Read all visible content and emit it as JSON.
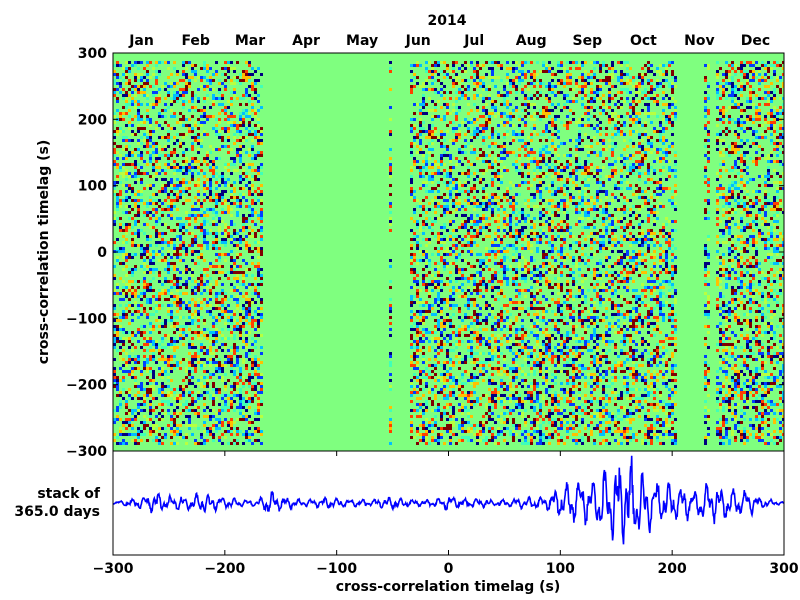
{
  "chart_data": [
    {
      "type": "heatmap",
      "title": "2014",
      "xlabel": "",
      "ylabel": "cross-correlation timelag (s)",
      "month_labels": [
        "Jan",
        "Feb",
        "Mar",
        "Apr",
        "May",
        "Jun",
        "Jul",
        "Aug",
        "Sep",
        "Oct",
        "Nov",
        "Dec"
      ],
      "ylim": [
        -300,
        300
      ],
      "yticks": [
        300,
        200,
        100,
        0,
        -100,
        -200,
        -300
      ],
      "ytick_labels": [
        "300",
        "200",
        "100",
        "0",
        "−100",
        "−200",
        "−300"
      ],
      "x_range_days": [
        1,
        366
      ],
      "data_gaps": [
        {
          "start": "2014-03-24",
          "end": "2014-05-31"
        },
        {
          "start": "2014-06-01",
          "end": "2014-06-11"
        },
        {
          "start": "2014-11-03",
          "end": "2014-11-18"
        },
        {
          "start": "2014-11-22",
          "end": "2014-11-25"
        }
      ],
      "colormap": [
        "#00007f",
        "#0040ff",
        "#00c0ff",
        "#40ffb8",
        "#7fff7f",
        "#7fff7f",
        "#b8ff40",
        "#ffc000",
        "#ff4000",
        "#7f0000"
      ],
      "background_color": "#7fff7f"
    },
    {
      "type": "line",
      "ylabel": "stack of\n365.0 days",
      "ylabel_lines": [
        "stack of",
        "365.0 days"
      ],
      "xlabel": "cross-correlation timelag (s)",
      "xlim": [
        -300,
        300
      ],
      "xticks": [
        -300,
        -200,
        -100,
        0,
        100,
        200,
        300
      ],
      "xtick_labels": [
        "−300",
        "−200",
        "−100",
        "0",
        "100",
        "200",
        "300"
      ],
      "ylim": [
        -1,
        1
      ],
      "line_color": "#0000ff",
      "series": [
        {
          "x": [
            -300,
            -290,
            -280,
            -270,
            -260,
            -250,
            -240,
            -230,
            -220,
            -210,
            -200,
            -190,
            -180,
            -170,
            -160,
            -150,
            -140,
            -130,
            -120,
            -110,
            -100,
            -90,
            -80,
            -70,
            -60,
            -50,
            -40,
            -30,
            -20,
            -10,
            0,
            10,
            20,
            30,
            40,
            50,
            60,
            70,
            80,
            90,
            100,
            110,
            120,
            130,
            140,
            150,
            155,
            160,
            165,
            170,
            180,
            190,
            200,
            210,
            220,
            230,
            240,
            250,
            260,
            270,
            280,
            290,
            300
          ],
          "amplitude": [
            0.02,
            0.06,
            0.09,
            0.12,
            0.22,
            0.12,
            0.14,
            0.12,
            0.2,
            0.14,
            0.1,
            0.08,
            0.06,
            0.07,
            0.25,
            0.12,
            0.1,
            0.06,
            0.08,
            0.1,
            0.08,
            0.07,
            0.08,
            0.06,
            0.1,
            0.12,
            0.08,
            0.06,
            0.05,
            0.08,
            0.15,
            0.09,
            0.07,
            0.08,
            0.05,
            0.07,
            0.08,
            0.1,
            0.12,
            0.15,
            0.3,
            0.35,
            0.45,
            0.42,
            0.6,
            0.8,
            0.9,
            0.92,
            0.78,
            0.62,
            0.45,
            0.4,
            0.3,
            0.32,
            0.28,
            0.35,
            0.32,
            0.3,
            0.28,
            0.2,
            0.1,
            0.05,
            0.02
          ]
        }
      ]
    }
  ]
}
